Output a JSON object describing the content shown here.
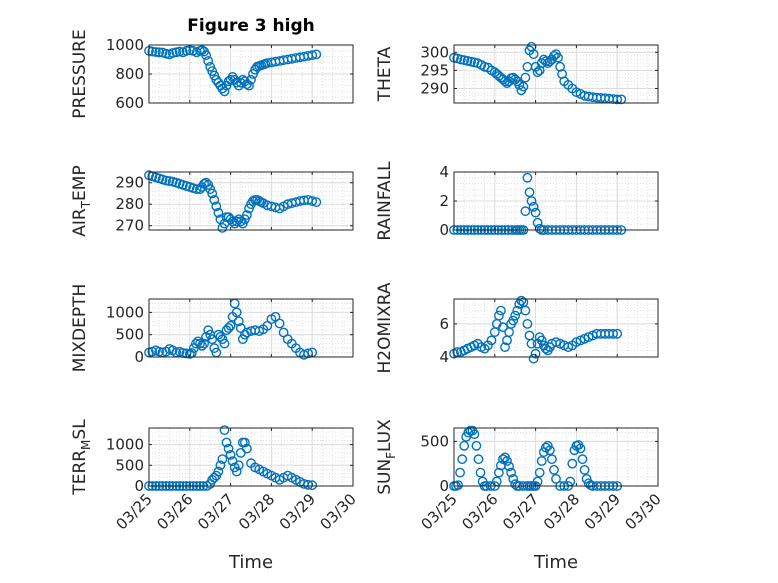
{
  "figure": {
    "title": "Figure 3 high",
    "marker_color": "#0072BD"
  },
  "chart_data": [
    {
      "type": "scatter",
      "ylabel": "PRESSURE",
      "ylim": [
        600,
        1000
      ],
      "yticks": [
        600,
        800,
        1000
      ],
      "xlim": [
        0,
        5
      ],
      "xticks": [
        "03/25",
        "03/26",
        "03/27",
        "03/28",
        "03/29",
        "03/30"
      ],
      "show_xticks": false,
      "grid": true,
      "x": [
        0.0,
        0.08,
        0.17,
        0.25,
        0.33,
        0.42,
        0.5,
        0.58,
        0.67,
        0.75,
        0.83,
        0.92,
        1.0,
        1.08,
        1.17,
        1.25,
        1.3,
        1.35,
        1.4,
        1.45,
        1.5,
        1.55,
        1.6,
        1.65,
        1.7,
        1.75,
        1.8,
        1.85,
        1.9,
        1.95,
        2.0,
        2.05,
        2.1,
        2.15,
        2.2,
        2.25,
        2.3,
        2.35,
        2.4,
        2.45,
        2.5,
        2.55,
        2.6,
        2.65,
        2.7,
        2.75,
        2.8,
        2.85,
        2.9,
        3.0,
        3.1,
        3.2,
        3.3,
        3.4,
        3.5,
        3.6,
        3.7,
        3.8,
        3.9,
        4.0,
        4.1
      ],
      "y": [
        960,
        955,
        952,
        950,
        948,
        940,
        935,
        945,
        950,
        955,
        950,
        960,
        965,
        960,
        950,
        960,
        965,
        955,
        930,
        890,
        850,
        820,
        790,
        760,
        740,
        720,
        700,
        680,
        720,
        750,
        760,
        780,
        760,
        740,
        720,
        740,
        760,
        750,
        730,
        720,
        760,
        800,
        830,
        850,
        855,
        860,
        865,
        870,
        875,
        880,
        885,
        890,
        895,
        900,
        905,
        910,
        915,
        920,
        925,
        930,
        935
      ]
    },
    {
      "type": "scatter",
      "ylabel": "THETA",
      "ylim": [
        286,
        302
      ],
      "yticks": [
        290,
        295,
        300
      ],
      "xlim": [
        0,
        5
      ],
      "xticks": [
        "03/25",
        "03/26",
        "03/27",
        "03/28",
        "03/29",
        "03/30"
      ],
      "show_xticks": false,
      "grid": true,
      "x": [
        0.0,
        0.08,
        0.17,
        0.25,
        0.33,
        0.42,
        0.5,
        0.58,
        0.67,
        0.75,
        0.83,
        0.92,
        1.0,
        1.05,
        1.1,
        1.15,
        1.2,
        1.25,
        1.3,
        1.35,
        1.4,
        1.45,
        1.5,
        1.55,
        1.6,
        1.65,
        1.7,
        1.75,
        1.8,
        1.85,
        1.9,
        1.95,
        2.0,
        2.05,
        2.1,
        2.15,
        2.2,
        2.25,
        2.3,
        2.35,
        2.4,
        2.45,
        2.5,
        2.55,
        2.6,
        2.65,
        2.7,
        2.8,
        2.9,
        3.0,
        3.1,
        3.2,
        3.3,
        3.4,
        3.5,
        3.6,
        3.7,
        3.8,
        3.9,
        4.0,
        4.1
      ],
      "y": [
        298.5,
        298.3,
        298,
        297.8,
        297.6,
        297.4,
        297.2,
        297,
        296.5,
        296,
        295.8,
        295,
        294.5,
        294,
        293.5,
        293,
        292.5,
        292,
        291.5,
        292,
        292.8,
        293,
        292.5,
        292,
        291,
        289.5,
        290.5,
        293,
        296,
        300.5,
        301.5,
        299.5,
        296,
        294.5,
        295,
        297,
        298,
        297.5,
        297,
        297.5,
        298,
        299,
        299.5,
        298.5,
        296,
        294,
        292,
        291,
        290,
        289,
        288.5,
        288,
        287.8,
        287.6,
        287.5,
        287.4,
        287.3,
        287.2,
        287.1,
        287,
        287
      ]
    },
    {
      "type": "scatter",
      "ylabel": "AIR_TEMP",
      "ylim": [
        268,
        295
      ],
      "yticks": [
        270,
        280,
        290
      ],
      "xlim": [
        0,
        5
      ],
      "xticks": [
        "03/25",
        "03/26",
        "03/27",
        "03/28",
        "03/29",
        "03/30"
      ],
      "show_xticks": false,
      "grid": true,
      "x": [
        0.0,
        0.08,
        0.17,
        0.25,
        0.33,
        0.42,
        0.5,
        0.58,
        0.67,
        0.75,
        0.83,
        0.92,
        1.0,
        1.08,
        1.17,
        1.25,
        1.3,
        1.35,
        1.4,
        1.45,
        1.5,
        1.55,
        1.6,
        1.65,
        1.7,
        1.75,
        1.8,
        1.85,
        1.9,
        1.95,
        2.0,
        2.05,
        2.1,
        2.15,
        2.2,
        2.25,
        2.3,
        2.35,
        2.4,
        2.45,
        2.5,
        2.55,
        2.6,
        2.65,
        2.7,
        2.75,
        2.8,
        2.9,
        3.0,
        3.1,
        3.2,
        3.3,
        3.4,
        3.5,
        3.6,
        3.7,
        3.8,
        3.9,
        4.0,
        4.1
      ],
      "y": [
        293.5,
        293,
        292.5,
        292,
        291.5,
        291,
        290.8,
        290.5,
        290,
        289.5,
        289,
        288.5,
        288,
        287.5,
        287,
        287,
        288,
        289.5,
        290,
        289,
        287,
        285,
        282,
        279,
        276,
        273,
        269,
        271,
        274,
        274,
        273,
        272,
        271,
        272,
        273,
        272,
        271,
        273,
        275,
        278,
        280,
        281.5,
        282,
        282,
        281.5,
        281,
        280.5,
        279.5,
        279,
        278.5,
        278,
        279,
        280,
        280.5,
        281,
        281.5,
        281.8,
        282,
        281.5,
        281
      ]
    },
    {
      "type": "scatter",
      "ylabel": "RAINFALL",
      "ylim": [
        0,
        4
      ],
      "yticks": [
        0,
        2,
        4
      ],
      "xlim": [
        0,
        5
      ],
      "xticks": [
        "03/25",
        "03/26",
        "03/27",
        "03/28",
        "03/29",
        "03/30"
      ],
      "show_xticks": false,
      "grid": true,
      "x": [
        0.0,
        0.08,
        0.17,
        0.25,
        0.33,
        0.42,
        0.5,
        0.58,
        0.67,
        0.75,
        0.83,
        0.92,
        1.0,
        1.08,
        1.17,
        1.25,
        1.33,
        1.42,
        1.5,
        1.55,
        1.6,
        1.65,
        1.7,
        1.75,
        1.8,
        1.85,
        1.9,
        1.95,
        2.0,
        2.05,
        2.1,
        2.15,
        2.2,
        2.3,
        2.4,
        2.5,
        2.6,
        2.7,
        2.8,
        2.9,
        3.0,
        3.1,
        3.2,
        3.3,
        3.4,
        3.5,
        3.6,
        3.7,
        3.8,
        3.9,
        4.0,
        4.1
      ],
      "y": [
        0,
        0,
        0,
        0,
        0,
        0,
        0,
        0,
        0,
        0,
        0,
        0,
        0,
        0,
        0,
        0,
        0,
        0,
        0,
        0,
        0,
        0,
        0,
        1.3,
        3.6,
        2.6,
        2.0,
        1.6,
        1.2,
        0.5,
        0.1,
        0,
        0,
        0,
        0,
        0,
        0,
        0,
        0,
        0,
        0,
        0,
        0,
        0,
        0,
        0,
        0,
        0,
        0,
        0,
        0,
        0
      ]
    },
    {
      "type": "scatter",
      "ylabel": "MIXDEPTH",
      "ylim": [
        0,
        1300
      ],
      "yticks": [
        0,
        500,
        1000
      ],
      "xlim": [
        0,
        5
      ],
      "xticks": [
        "03/25",
        "03/26",
        "03/27",
        "03/28",
        "03/29",
        "03/30"
      ],
      "show_xticks": false,
      "grid": true,
      "x": [
        0.0,
        0.08,
        0.17,
        0.25,
        0.33,
        0.42,
        0.5,
        0.58,
        0.67,
        0.75,
        0.83,
        0.92,
        1.0,
        1.05,
        1.1,
        1.15,
        1.2,
        1.25,
        1.3,
        1.35,
        1.4,
        1.45,
        1.5,
        1.55,
        1.6,
        1.65,
        1.7,
        1.75,
        1.8,
        1.85,
        1.9,
        1.95,
        2.0,
        2.05,
        2.1,
        2.15,
        2.2,
        2.25,
        2.3,
        2.35,
        2.4,
        2.5,
        2.6,
        2.7,
        2.8,
        2.9,
        3.0,
        3.1,
        3.2,
        3.3,
        3.4,
        3.5,
        3.6,
        3.7,
        3.8,
        3.9,
        4.0
      ],
      "y": [
        100,
        120,
        150,
        120,
        100,
        120,
        180,
        150,
        100,
        120,
        90,
        80,
        70,
        90,
        200,
        300,
        350,
        300,
        250,
        300,
        450,
        600,
        500,
        400,
        200,
        100,
        500,
        450,
        400,
        300,
        600,
        650,
        700,
        900,
        1200,
        1000,
        800,
        650,
        400,
        500,
        550,
        580,
        600,
        580,
        620,
        700,
        850,
        900,
        750,
        550,
        400,
        300,
        200,
        100,
        50,
        80,
        100
      ]
    },
    {
      "type": "scatter",
      "ylabel": "H2OMIXRA",
      "ylim": [
        4,
        7.5
      ],
      "yticks": [
        4,
        6
      ],
      "xlim": [
        0,
        5
      ],
      "xticks": [
        "03/25",
        "03/26",
        "03/27",
        "03/28",
        "03/29",
        "03/30"
      ],
      "show_xticks": false,
      "grid": true,
      "x": [
        0.0,
        0.08,
        0.17,
        0.25,
        0.33,
        0.42,
        0.5,
        0.58,
        0.67,
        0.75,
        0.83,
        0.92,
        1.0,
        1.05,
        1.1,
        1.15,
        1.2,
        1.25,
        1.3,
        1.35,
        1.4,
        1.45,
        1.5,
        1.55,
        1.6,
        1.65,
        1.7,
        1.75,
        1.8,
        1.85,
        1.9,
        1.95,
        2.0,
        2.05,
        2.1,
        2.15,
        2.2,
        2.25,
        2.3,
        2.35,
        2.4,
        2.5,
        2.6,
        2.7,
        2.8,
        2.9,
        3.0,
        3.1,
        3.2,
        3.3,
        3.4,
        3.5,
        3.6,
        3.7,
        3.8,
        3.9,
        4.0
      ],
      "y": [
        4.2,
        4.3,
        4.3,
        4.4,
        4.5,
        4.6,
        4.7,
        4.8,
        4.6,
        4.5,
        4.7,
        5.0,
        5.5,
        6.0,
        6.5,
        6.8,
        5.8,
        4.6,
        5.0,
        5.5,
        6.0,
        6.2,
        6.5,
        6.8,
        7.2,
        7.4,
        7.3,
        6.8,
        6.0,
        5.3,
        4.8,
        3.9,
        4.2,
        4.8,
        5.2,
        5.0,
        4.7,
        4.5,
        4.4,
        4.6,
        4.8,
        4.9,
        4.8,
        4.7,
        4.6,
        4.7,
        4.9,
        5.0,
        5.1,
        5.2,
        5.3,
        5.4,
        5.4,
        5.4,
        5.4,
        5.4,
        5.4
      ]
    },
    {
      "type": "scatter",
      "ylabel": "TERR_MSL",
      "ylim": [
        0,
        1400
      ],
      "yticks": [
        0,
        500,
        1000
      ],
      "xlim": [
        0,
        5
      ],
      "xticks": [
        "03/25",
        "03/26",
        "03/27",
        "03/28",
        "03/29",
        "03/30"
      ],
      "show_xticks": true,
      "xlabel": "Time",
      "grid": true,
      "x": [
        0.0,
        0.08,
        0.17,
        0.25,
        0.33,
        0.42,
        0.5,
        0.58,
        0.67,
        0.75,
        0.83,
        0.92,
        1.0,
        1.08,
        1.17,
        1.25,
        1.33,
        1.42,
        1.5,
        1.55,
        1.6,
        1.65,
        1.7,
        1.75,
        1.8,
        1.85,
        1.9,
        1.95,
        2.0,
        2.05,
        2.1,
        2.15,
        2.2,
        2.25,
        2.3,
        2.35,
        2.4,
        2.5,
        2.6,
        2.7,
        2.8,
        2.9,
        3.0,
        3.1,
        3.2,
        3.3,
        3.4,
        3.5,
        3.6,
        3.7,
        3.8,
        3.9,
        4.0
      ],
      "y": [
        0,
        0,
        0,
        0,
        0,
        0,
        0,
        0,
        0,
        0,
        0,
        0,
        0,
        0,
        0,
        0,
        0,
        0,
        50,
        150,
        200,
        250,
        350,
        500,
        650,
        1350,
        1050,
        900,
        750,
        600,
        450,
        350,
        500,
        800,
        1050,
        1050,
        900,
        550,
        450,
        400,
        350,
        300,
        250,
        200,
        150,
        200,
        250,
        200,
        150,
        100,
        50,
        30,
        20
      ]
    },
    {
      "type": "scatter",
      "ylabel": "SUN_FLUX",
      "ylim": [
        0,
        650
      ],
      "yticks": [
        0,
        500
      ],
      "xlim": [
        0,
        5
      ],
      "xticks": [
        "03/25",
        "03/26",
        "03/27",
        "03/28",
        "03/29",
        "03/30"
      ],
      "show_xticks": true,
      "xlabel": "Time",
      "grid": true,
      "x": [
        0.0,
        0.05,
        0.1,
        0.15,
        0.2,
        0.25,
        0.3,
        0.35,
        0.4,
        0.45,
        0.5,
        0.55,
        0.6,
        0.65,
        0.7,
        0.75,
        0.8,
        0.9,
        1.0,
        1.05,
        1.1,
        1.15,
        1.2,
        1.25,
        1.3,
        1.35,
        1.4,
        1.45,
        1.5,
        1.55,
        1.6,
        1.7,
        1.8,
        1.85,
        1.9,
        1.95,
        2.0,
        2.05,
        2.1,
        2.15,
        2.2,
        2.25,
        2.3,
        2.35,
        2.4,
        2.45,
        2.5,
        2.6,
        2.7,
        2.8,
        2.85,
        2.9,
        2.95,
        3.0,
        3.05,
        3.1,
        3.15,
        3.2,
        3.25,
        3.3,
        3.35,
        3.4,
        3.5,
        3.6,
        3.7,
        3.8,
        3.9,
        4.0
      ],
      "y": [
        0,
        0,
        10,
        150,
        300,
        450,
        550,
        600,
        620,
        620,
        580,
        450,
        300,
        150,
        50,
        0,
        0,
        0,
        0,
        50,
        150,
        230,
        300,
        320,
        280,
        220,
        150,
        80,
        20,
        0,
        0,
        0,
        0,
        0,
        0,
        0,
        0,
        50,
        150,
        280,
        380,
        430,
        450,
        400,
        300,
        180,
        80,
        0,
        0,
        0,
        50,
        250,
        400,
        450,
        460,
        420,
        300,
        180,
        80,
        30,
        10,
        0,
        0,
        0,
        0,
        0,
        0,
        0
      ]
    }
  ]
}
